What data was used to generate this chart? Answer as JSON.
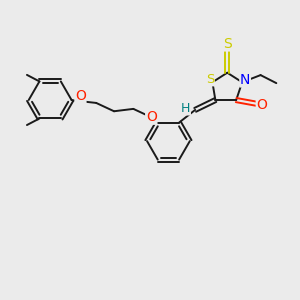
{
  "background_color": "#ebebeb",
  "bond_color": "#1a1a1a",
  "atom_colors": {
    "S": "#cccc00",
    "N": "#0000ff",
    "O": "#ff2200",
    "H": "#008080"
  },
  "lw": 1.4,
  "ring_r": 0.68,
  "thiazo_r": 0.6
}
